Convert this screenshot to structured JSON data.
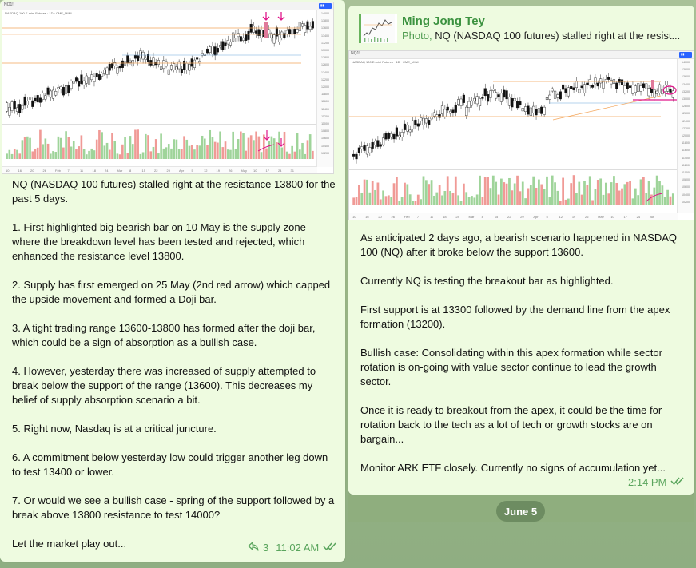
{
  "messages": [
    {
      "chart_label": "NQ1!",
      "chart_legend": "NASDAQ 100 E-mini Futures · 1D · CME_MINI",
      "chart_ticks": [
        "10",
        "16",
        "20",
        "26",
        "Feb",
        "7",
        "11",
        "18",
        "24",
        "Mar",
        "8",
        "15",
        "22",
        "29",
        "Apr",
        "5",
        "12",
        "19",
        "26",
        "May",
        "10",
        "17",
        "24",
        "31"
      ],
      "body": "NQ (NASDAQ 100 futures) stalled right at the resistance 13800 for the past 5 days.\n\n1. First highlighted big bearish bar on 10 May is the supply zone where the breakdown level has been tested and rejected, which enhanced the resistance level 13800.\n\n2. Supply has first emerged on 25 May (2nd red arrow) which capped the upside movement and formed a Doji bar.\n\n3. A tight trading range 13600-13800 has formed after the doji bar, which could be a sign of absorption as a bullish case.\n\n4. However, yesterday there was increased of supply attempted to break below the support of the range (13600). This decreases my belief of supply absorption scenario a bit.\n\n5. Right now, Nasdaq is at a critical juncture.\n\n6. A commitment below yesterday low could trigger another leg down to test 13400 or lower.\n\n7. Or would we see a bullish case - spring of the support followed by a break above 13800 resistance to test 14000?\n\nLet the market play out...",
      "reply_count": "3",
      "time": "11:02 AM"
    },
    {
      "author": "Ming Jong Tey",
      "reply_kind": "Photo,",
      "reply_snippet": "NQ (NASDAQ 100 futures) stalled right at the resist...",
      "chart_label": "NQ1!",
      "chart_legend": "NASDAQ 100 E-mini Futures · 1D · CME_MINI",
      "chart_ticks": [
        "10",
        "16",
        "20",
        "26",
        "Feb",
        "7",
        "11",
        "18",
        "24",
        "Mar",
        "8",
        "15",
        "22",
        "29",
        "Apr",
        "5",
        "12",
        "19",
        "26",
        "May",
        "10",
        "17",
        "24",
        "Jun"
      ],
      "body": "As anticipated 2 days ago, a bearish scenario happened in NASDAQ 100 (NQ) after it broke below the support 13600.\n\nCurrently NQ is testing the breakout bar as highlighted.\n\nFirst support is at 13300 followed by the demand line from the apex formation (13200).\n\nBullish case: Consolidating within this apex formation while sector rotation is on-going with value sector continue to lead the growth sector.\n\nOnce it is ready to breakout from the apex, it could be the time for rotation back to the tech as a lot of tech or growth stocks are on bargain...\n\nMonitor ARK ETF closely. Currently no signs of accumulation yet...",
      "time": "2:14 PM"
    }
  ],
  "date_divider": "June 5",
  "colors": {
    "accent_green": "#3c9240",
    "bubble": "#eefbe0",
    "annotation_magenta": "#e0168a",
    "bull": "#26a69a",
    "bear": "#ef5350"
  },
  "icons": [
    "reply-icon",
    "double-check-icon",
    "arrow-down-annotation-icon",
    "ellipse-annotation-icon"
  ]
}
